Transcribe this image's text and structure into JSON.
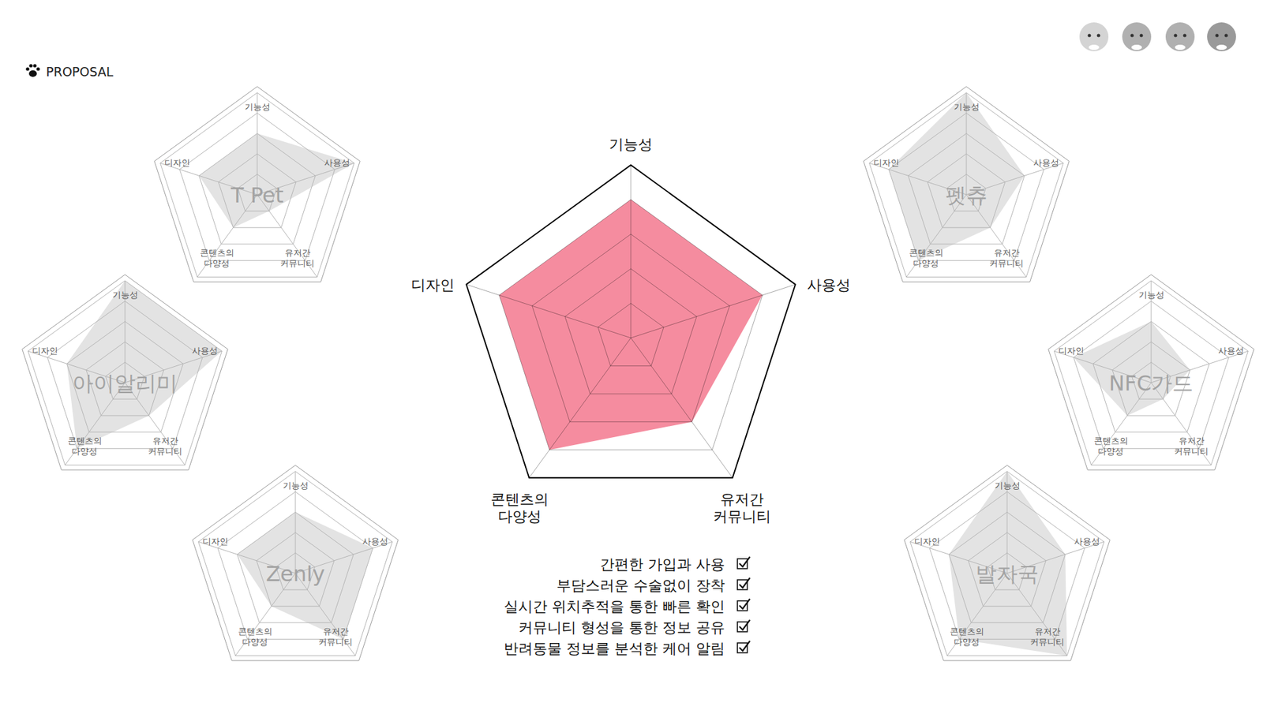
{
  "header": {
    "title": "PROPOSAL"
  },
  "chart_data": [
    {
      "type": "radar",
      "categories": [
        "기능성",
        "사용성",
        "유저간 커뮤니티",
        "콘텐츠의 다양성",
        "디자인"
      ],
      "values": [
        4,
        4,
        3,
        4,
        4
      ],
      "color": "#f4869a",
      "ylim": [
        0,
        5
      ],
      "yticks": [
        1,
        2,
        3,
        4,
        5
      ],
      "tick_labels": false
    },
    {
      "type": "radar",
      "title": "T Pet",
      "categories": [
        "기능성",
        "사용성",
        "유저간 커뮤니티",
        "콘텐츠의 다양성",
        "디자인"
      ],
      "values": [
        3,
        5,
        1,
        2,
        3
      ],
      "color": "#d9d9d9",
      "ylim": [
        0,
        5
      ],
      "yticks": [
        1,
        2,
        3,
        4,
        5
      ],
      "tick_labels": false
    },
    {
      "type": "radar",
      "title": "아이알리미",
      "categories": [
        "기능성",
        "사용성",
        "유저간 커뮤니티",
        "콘텐츠의 다양성",
        "디자인"
      ],
      "values": [
        5,
        5,
        2,
        4,
        3
      ],
      "color": "#d9d9d9",
      "ylim": [
        0,
        5
      ],
      "yticks": [
        1,
        2,
        3,
        4,
        5
      ],
      "tick_labels": false
    },
    {
      "type": "radar",
      "title": "Zenly",
      "categories": [
        "기능성",
        "사용성",
        "유저간 커뮤니티",
        "콘텐츠의 다양성",
        "디자인"
      ],
      "values": [
        3,
        4,
        4,
        2,
        3
      ],
      "color": "#d9d9d9",
      "ylim": [
        0,
        5
      ],
      "yticks": [
        1,
        2,
        3,
        4,
        5
      ],
      "tick_labels": false
    },
    {
      "type": "radar",
      "title": "펫츄",
      "categories": [
        "기능성",
        "사용성",
        "유저간 커뮤니티",
        "콘텐츠의 다양성",
        "디자인"
      ],
      "values": [
        5,
        3,
        2,
        4,
        4
      ],
      "color": "#d9d9d9",
      "ylim": [
        0,
        5
      ],
      "yticks": [
        1,
        2,
        3,
        4,
        5
      ],
      "tick_labels": false
    },
    {
      "type": "radar",
      "title": "NFC가드",
      "categories": [
        "기능성",
        "사용성",
        "유저간 커뮤니티",
        "콘텐츠의 다양성",
        "디자인"
      ],
      "values": [
        3,
        2,
        1,
        2,
        4
      ],
      "color": "#d9d9d9",
      "ylim": [
        0,
        5
      ],
      "yticks": [
        1,
        2,
        3,
        4,
        5
      ],
      "tick_labels": false
    },
    {
      "type": "radar",
      "title": "발자국",
      "categories": [
        "기능성",
        "사용성",
        "유저간 커뮤니티",
        "콘텐츠의 다양성",
        "디자인"
      ],
      "values": [
        5,
        3,
        5,
        4,
        3
      ],
      "color": "#d9d9d9",
      "ylim": [
        0,
        5
      ],
      "yticks": [
        1,
        2,
        3,
        4,
        5
      ],
      "tick_labels": false
    }
  ],
  "checklist": [
    "간편한 가입과 사용",
    "부담스러운 수술없이 장착",
    "실시간 위치추적을 통한 빠른 확인",
    "커뮤니티 형성을 통한 정보 공유",
    "반려동물 정보를 분석한 케어 알림"
  ]
}
